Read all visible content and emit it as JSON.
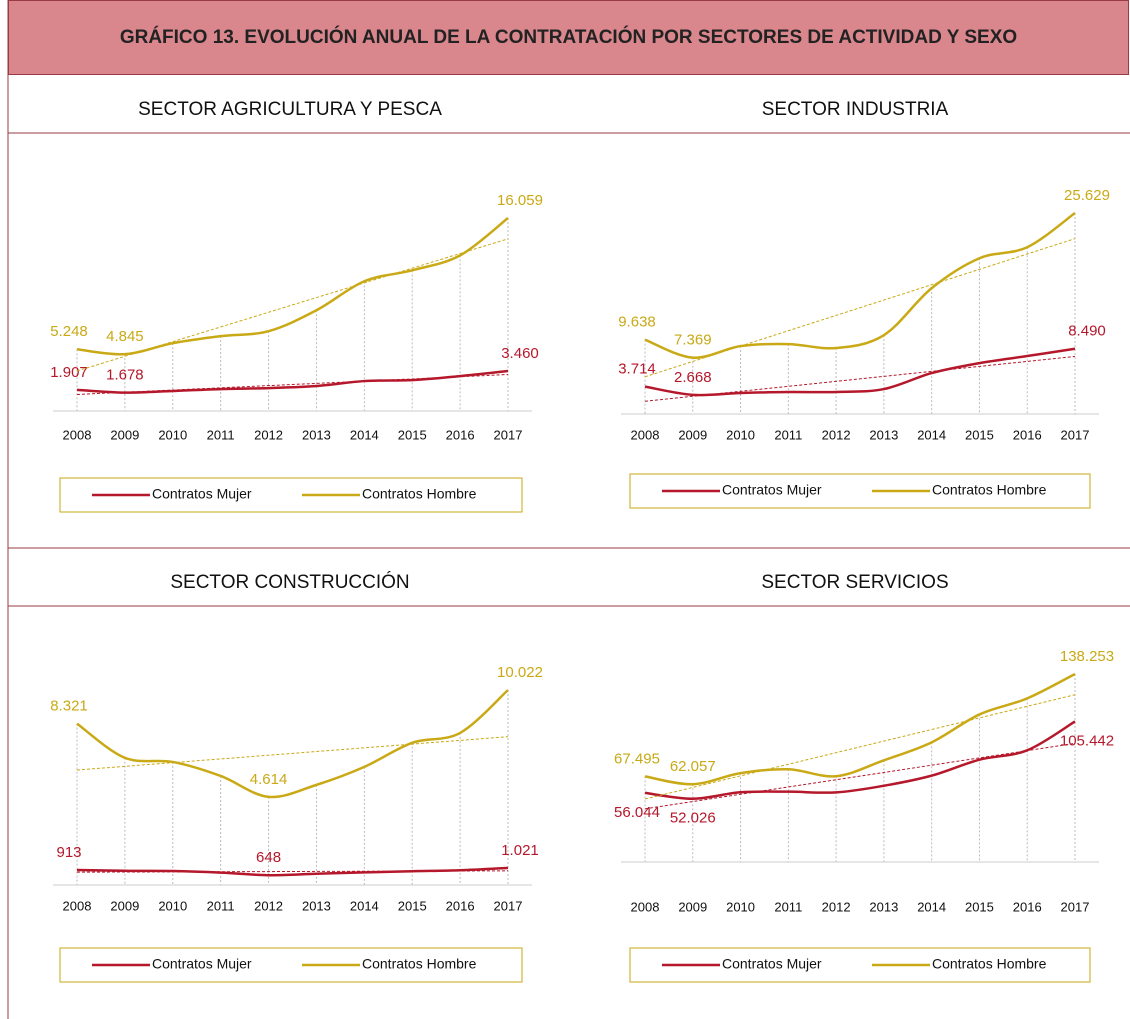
{
  "title": "GRÁFICO 13. EVOLUCIÓN ANUAL DE LA CONTRATACIÓN POR SECTORES DE ACTIVIDAD Y SEXO",
  "chart_data": [
    {
      "type": "line",
      "title": "SECTOR AGRICULTURA Y PESCA",
      "trendline": true,
      "categories": [
        "2008",
        "2009",
        "2010",
        "2011",
        "2012",
        "2013",
        "2014",
        "2015",
        "2016",
        "2017"
      ],
      "series": [
        {
          "name": "Contratos Mujer",
          "color": "#b5172b",
          "values": [
            1907,
            1678,
            1810,
            1970,
            2050,
            2220,
            2630,
            2710,
            3040,
            3460
          ],
          "value_labels": [
            "1.907",
            "1.678",
            null,
            null,
            null,
            null,
            null,
            null,
            null,
            "3.460"
          ]
        },
        {
          "name": "Contratos Hombre",
          "color": "#c9a915",
          "values": [
            5248,
            4845,
            5750,
            6330,
            6740,
            8460,
            10850,
            11750,
            12980,
            16059
          ],
          "value_labels": [
            "5.248",
            "4.845",
            null,
            null,
            null,
            null,
            null,
            null,
            null,
            "16.059"
          ]
        }
      ]
    },
    {
      "type": "line",
      "title": "SECTOR INDUSTRIA",
      "trendline": true,
      "categories": [
        "2008",
        "2009",
        "2010",
        "2011",
        "2012",
        "2013",
        "2014",
        "2015",
        "2016",
        "2017"
      ],
      "series": [
        {
          "name": "Contratos Mujer",
          "color": "#b5172b",
          "values": [
            3714,
            2668,
            2900,
            3030,
            3030,
            3400,
            5420,
            6680,
            7570,
            8490
          ],
          "value_labels": [
            "3.714",
            "2.668",
            null,
            null,
            null,
            null,
            null,
            null,
            null,
            "8.490"
          ]
        },
        {
          "name": "Contratos Hombre",
          "color": "#c9a915",
          "values": [
            9638,
            7369,
            8830,
            9080,
            8580,
            10210,
            16140,
            19920,
            21310,
            25629
          ],
          "value_labels": [
            "9.638",
            "7.369",
            null,
            null,
            null,
            null,
            null,
            null,
            null,
            "25.629"
          ]
        }
      ]
    },
    {
      "type": "line",
      "title": "SECTOR CONSTRUCCIÓN",
      "trendline": true,
      "categories": [
        "2008",
        "2009",
        "2010",
        "2011",
        "2012",
        "2013",
        "2014",
        "2015",
        "2016",
        "2017"
      ],
      "series": [
        {
          "name": "Contratos Mujer",
          "color": "#b5172b",
          "values": [
            913,
            870,
            860,
            780,
            648,
            720,
            790,
            850,
            900,
            1021
          ],
          "value_labels": [
            "913",
            null,
            null,
            null,
            "648",
            null,
            null,
            null,
            null,
            "1.021"
          ]
        },
        {
          "name": "Contratos Hombre",
          "color": "#c9a915",
          "values": [
            8321,
            6590,
            6380,
            5670,
            4614,
            5220,
            6130,
            7350,
            7850,
            10022
          ],
          "value_labels": [
            "8.321",
            null,
            null,
            null,
            "4.614",
            null,
            null,
            null,
            null,
            "10.022"
          ]
        }
      ]
    },
    {
      "type": "line",
      "title": "SECTOR SERVICIOS",
      "trendline": true,
      "categories": [
        "2008",
        "2009",
        "2010",
        "2011",
        "2012",
        "2013",
        "2014",
        "2015",
        "2016",
        "2017"
      ],
      "series": [
        {
          "name": "Contratos Mujer",
          "color": "#b5172b",
          "values": [
            56044,
            52026,
            56500,
            56900,
            56400,
            61000,
            68000,
            79000,
            85500,
            105442
          ],
          "value_labels": [
            "56.044",
            "52.026",
            null,
            null,
            null,
            null,
            null,
            null,
            null,
            "105.442"
          ]
        },
        {
          "name": "Contratos Hombre",
          "color": "#c9a915",
          "values": [
            67495,
            62057,
            69700,
            72400,
            67600,
            78600,
            91000,
            110300,
            121400,
            138253
          ],
          "value_labels": [
            "67.495",
            "62.057",
            null,
            null,
            null,
            null,
            null,
            null,
            null,
            "138.253"
          ]
        }
      ]
    }
  ]
}
